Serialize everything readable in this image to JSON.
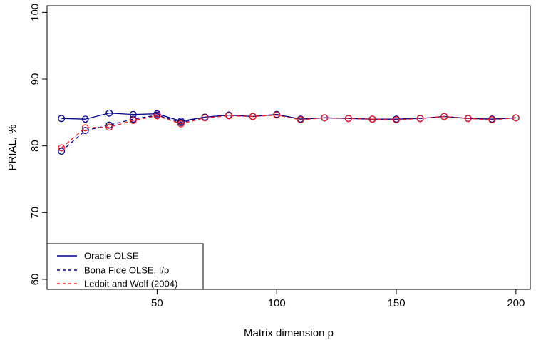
{
  "chart_data": {
    "type": "line",
    "title": "",
    "xlabel": "Matrix dimension p",
    "ylabel": "PRIAL, %",
    "xlim": [
      4,
      206
    ],
    "ylim": [
      58.5,
      101
    ],
    "x_ticks": [
      50,
      100,
      150,
      200
    ],
    "y_ticks": [
      60,
      70,
      80,
      90,
      100
    ],
    "grid": false,
    "legend_position": "bottom-left",
    "x": [
      10,
      20,
      30,
      40,
      50,
      60,
      70,
      80,
      90,
      100,
      110,
      120,
      130,
      140,
      150,
      160,
      170,
      180,
      190,
      200
    ],
    "series": [
      {
        "name": "Oracle OLSE",
        "color": "#00008b",
        "dash": "solid",
        "values": [
          84.1,
          84.0,
          84.9,
          84.7,
          84.8,
          83.7,
          84.3,
          84.6,
          84.4,
          84.7,
          84.0,
          84.2,
          84.1,
          84.0,
          84.0,
          84.1,
          84.4,
          84.1,
          84.0,
          84.2
        ]
      },
      {
        "name": "Bona Fide OLSE, I/p",
        "color": "#00008b",
        "dash": "dashed",
        "values": [
          79.2,
          82.3,
          83.1,
          84.0,
          84.6,
          83.5,
          84.3,
          84.6,
          84.4,
          84.7,
          84.0,
          84.2,
          84.1,
          84.0,
          84.0,
          84.1,
          84.4,
          84.1,
          84.0,
          84.2
        ]
      },
      {
        "name": "Ledoit and Wolf (2004)",
        "color": "#ee1c25",
        "dash": "dashed",
        "values": [
          79.7,
          82.7,
          82.8,
          83.8,
          84.5,
          83.3,
          84.2,
          84.5,
          84.4,
          84.6,
          83.9,
          84.2,
          84.1,
          84.0,
          83.9,
          84.1,
          84.4,
          84.1,
          83.9,
          84.2
        ]
      }
    ]
  }
}
